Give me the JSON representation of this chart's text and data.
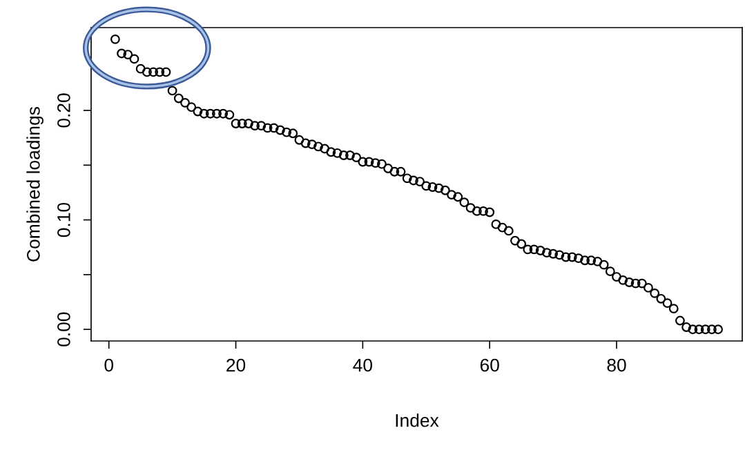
{
  "chart_data": {
    "type": "scatter",
    "xlabel": "Index",
    "ylabel": "Combined loadings",
    "x": [
      1,
      2,
      3,
      4,
      5,
      6,
      7,
      8,
      9,
      10,
      11,
      12,
      13,
      14,
      15,
      16,
      17,
      18,
      19,
      20,
      21,
      22,
      23,
      24,
      25,
      26,
      27,
      28,
      29,
      30,
      31,
      32,
      33,
      34,
      35,
      36,
      37,
      38,
      39,
      40,
      41,
      42,
      43,
      44,
      45,
      46,
      47,
      48,
      49,
      50,
      51,
      52,
      53,
      54,
      55,
      56,
      57,
      58,
      59,
      60,
      61,
      62,
      63,
      64,
      65,
      66,
      67,
      68,
      69,
      70,
      71,
      72,
      73,
      74,
      75,
      76,
      77,
      78,
      79,
      80,
      81,
      82,
      83,
      84,
      85,
      86,
      87,
      88,
      89,
      90,
      91,
      92,
      93,
      94,
      95,
      96
    ],
    "series": [
      {
        "color": "#000000",
        "values": [
          0.265,
          0.252,
          0.251,
          0.247,
          0.238,
          0.235,
          0.235,
          0.235,
          0.235,
          0.218,
          0.211,
          0.207,
          0.203,
          0.199,
          0.197,
          0.197,
          0.197,
          0.197,
          0.196,
          0.188,
          0.188,
          0.188,
          0.186,
          0.186,
          0.184,
          0.184,
          0.182,
          0.18,
          0.179,
          0.173,
          0.17,
          0.169,
          0.167,
          0.165,
          0.162,
          0.161,
          0.159,
          0.159,
          0.157,
          0.153,
          0.153,
          0.152,
          0.151,
          0.147,
          0.144,
          0.144,
          0.138,
          0.136,
          0.135,
          0.131,
          0.13,
          0.129,
          0.127,
          0.123,
          0.121,
          0.116,
          0.111,
          0.108,
          0.108,
          0.107,
          0.096,
          0.093,
          0.09,
          0.081,
          0.078,
          0.073,
          0.073,
          0.072,
          0.07,
          0.069,
          0.068,
          0.066,
          0.066,
          0.065,
          0.063,
          0.063,
          0.062,
          0.059,
          0.053,
          0.048,
          0.045,
          0.043,
          0.042,
          0.042,
          0.038,
          0.033,
          0.028,
          0.024,
          0.019,
          0.008,
          0.002,
          0,
          0,
          0,
          0,
          0
        ]
      }
    ],
    "xlim": [
      -2.8,
      99.8
    ],
    "xticks": [
      0,
      20,
      40,
      60,
      80
    ],
    "ylim": [
      -0.0106,
      0.2756
    ],
    "yticks": [
      {
        "value": 0,
        "label": "0.00"
      },
      {
        "value": 0.05,
        "label": null
      },
      {
        "value": 0.1,
        "label": "0.10"
      },
      {
        "value": 0.15,
        "label": null
      },
      {
        "value": 0.2,
        "label": "0.20"
      }
    ],
    "marker": "circle",
    "grid": false,
    "legend": false
  }
}
